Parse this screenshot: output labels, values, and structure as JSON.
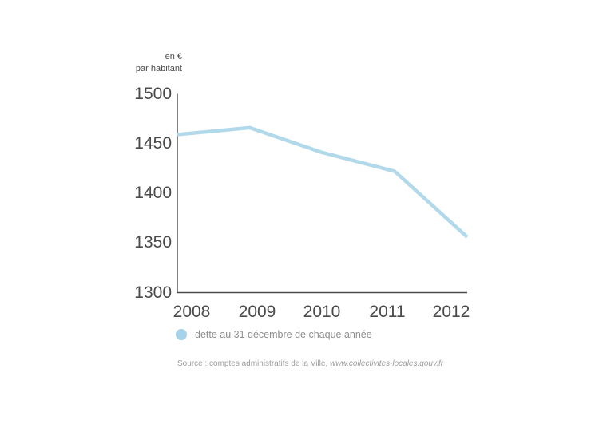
{
  "chart_data": {
    "type": "line",
    "title": "",
    "unit_lines": [
      "en €",
      "par habitant"
    ],
    "categories": [
      "2008",
      "2009",
      "2010",
      "2011",
      "2012"
    ],
    "series": [
      {
        "name": "dette au 31 décembre de chaque année",
        "values": [
          1459,
          1466,
          1441,
          1422,
          1356
        ]
      }
    ],
    "xlabel": "",
    "ylabel": "en € par habitant",
    "ylim": [
      1300,
      1500
    ],
    "yticks": [
      1500,
      1450,
      1400,
      1350,
      1300
    ],
    "grid": false,
    "legend_position": "bottom-left"
  },
  "legend": {
    "label": "dette au 31 décembre de chaque année"
  },
  "source": {
    "prefix": "Source : comptes administratifs de la Ville, ",
    "url": "www.collectivites-locales.gouv.fr"
  },
  "colors": {
    "line": "#b2d9ea",
    "legend_dot": "#a6d3e9",
    "axis": "#4c4c4c",
    "tick_text": "#4a4a4a",
    "legend_text": "#8e8e8e",
    "source_text": "#9c9c9c"
  }
}
